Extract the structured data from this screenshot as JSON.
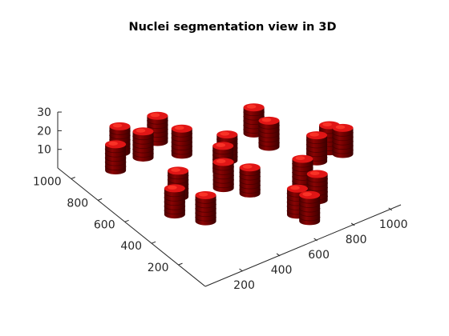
{
  "chart_data": {
    "type": "scatter",
    "title": "Nuclei segmentation view in 3D",
    "xlabel": "",
    "ylabel": "",
    "zlabel": "",
    "xlim": [
      0,
      1100
    ],
    "ylim": [
      0,
      1100
    ],
    "zlim": [
      0,
      30
    ],
    "x_ticks": [
      "200",
      "400",
      "600",
      "800",
      "1000"
    ],
    "y_ticks": [
      "200",
      "400",
      "600",
      "800",
      "1000"
    ],
    "z_ticks": [
      "10",
      "20",
      "30"
    ],
    "grid": false,
    "colors": {
      "nucleus_body": "#7a0000",
      "nucleus_highlight": "#e01515",
      "nucleus_shadow": "#3d0000",
      "axes": "#262626"
    },
    "series": [
      {
        "marker": "nucleus",
        "points": [
          {
            "x": 290,
            "y": 1040,
            "z": 0
          },
          {
            "x": 195,
            "y": 940,
            "z": 0
          },
          {
            "x": 210,
            "y": 520,
            "z": 0
          },
          {
            "x": 300,
            "y": 620,
            "z": 0
          },
          {
            "x": 290,
            "y": 400,
            "z": 0
          },
          {
            "x": 350,
            "y": 950,
            "z": 0
          },
          {
            "x": 470,
            "y": 1010,
            "z": 0
          },
          {
            "x": 500,
            "y": 870,
            "z": 0
          },
          {
            "x": 500,
            "y": 560,
            "z": 0
          },
          {
            "x": 570,
            "y": 660,
            "z": 0
          },
          {
            "x": 635,
            "y": 720,
            "z": 0
          },
          {
            "x": 570,
            "y": 460,
            "z": 0
          },
          {
            "x": 850,
            "y": 820,
            "z": 0
          },
          {
            "x": 845,
            "y": 700,
            "z": 0
          },
          {
            "x": 795,
            "y": 380,
            "z": 0
          },
          {
            "x": 780,
            "y": 250,
            "z": 0
          },
          {
            "x": 1040,
            "y": 520,
            "z": 0
          },
          {
            "x": 1075,
            "y": 470,
            "z": 0
          },
          {
            "x": 950,
            "y": 490,
            "z": 0
          },
          {
            "x": 645,
            "y": 210,
            "z": 0
          },
          {
            "x": 660,
            "y": 140,
            "z": 0
          }
        ]
      }
    ]
  }
}
